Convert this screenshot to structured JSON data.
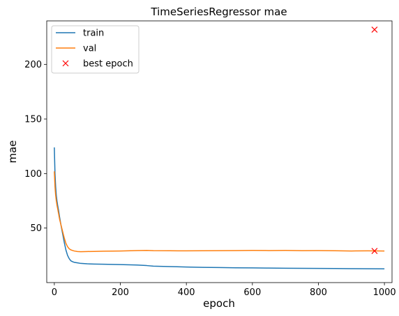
{
  "chart_data": {
    "type": "line",
    "title": "TimeSeriesRegressor mae",
    "xlabel": "epoch",
    "ylabel": "mae",
    "xlim": [
      -23,
      1023
    ],
    "ylim": [
      0,
      240
    ],
    "xticks": [
      0,
      200,
      400,
      600,
      800,
      1000
    ],
    "yticks": [
      50,
      100,
      150,
      200
    ],
    "grid": false,
    "legend": "upper left",
    "series": [
      {
        "name": "train",
        "color": "#1f77b4",
        "x": [
          0,
          2,
          4,
          6,
          8,
          10,
          13,
          16,
          20,
          25,
          30,
          35,
          40,
          45,
          50,
          55,
          60,
          70,
          80,
          100,
          120,
          150,
          200,
          250,
          280,
          300,
          350,
          400,
          450,
          500,
          550,
          600,
          650,
          700,
          750,
          800,
          850,
          900,
          950,
          1000
        ],
        "y": [
          124,
          100,
          88,
          80,
          75,
          71,
          66,
          60,
          53,
          45,
          37,
          30,
          25,
          22,
          20,
          19.2,
          18.6,
          18.1,
          17.6,
          17.2,
          17.0,
          16.8,
          16.5,
          16.1,
          15.6,
          15.1,
          14.7,
          14.3,
          14.0,
          13.8,
          13.6,
          13.5,
          13.3,
          13.2,
          13.1,
          13.0,
          12.9,
          12.8,
          12.7,
          12.6
        ]
      },
      {
        "name": "val",
        "color": "#ff7f0e",
        "x": [
          0,
          2,
          4,
          6,
          8,
          10,
          13,
          16,
          20,
          25,
          30,
          35,
          40,
          45,
          50,
          55,
          60,
          70,
          80,
          100,
          120,
          150,
          200,
          250,
          280,
          300,
          350,
          400,
          450,
          500,
          550,
          600,
          650,
          700,
          750,
          800,
          850,
          900,
          950,
          1000
        ],
        "y": [
          102,
          88,
          80,
          75,
          71,
          68,
          63,
          58,
          53,
          47,
          41,
          36,
          33,
          31,
          30,
          29.5,
          29.0,
          28.5,
          28.3,
          28.5,
          28.6,
          28.8,
          29.0,
          29.4,
          29.5,
          29.3,
          29.2,
          29.1,
          29.2,
          29.3,
          29.4,
          29.5,
          29.4,
          29.5,
          29.3,
          29.4,
          29.2,
          29.0,
          29.1,
          29.0
        ]
      }
    ],
    "best_epoch": {
      "name": "best epoch",
      "color": "#ff0000",
      "points": [
        {
          "x": 970,
          "y": 232
        },
        {
          "x": 970,
          "y": 29
        }
      ]
    }
  }
}
